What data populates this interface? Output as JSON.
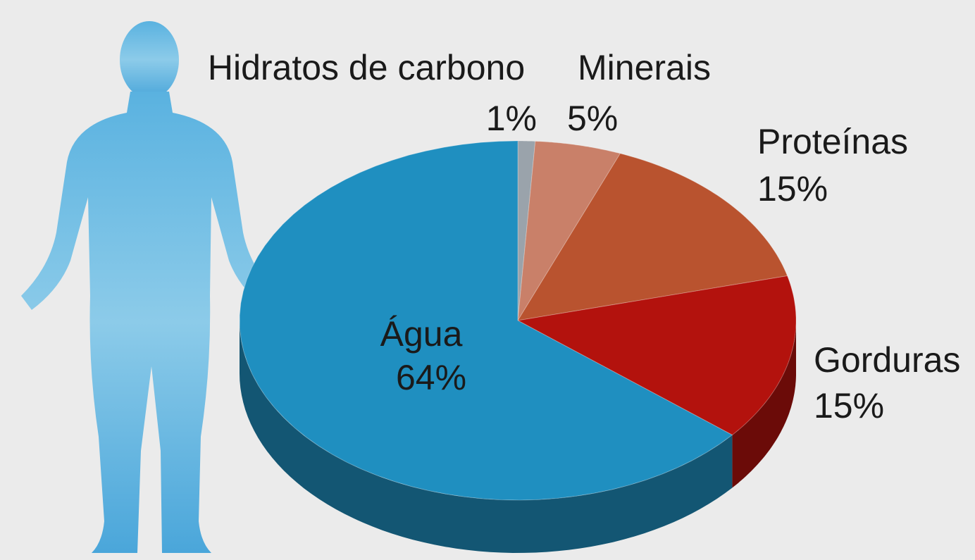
{
  "chart_data": {
    "type": "pie3d",
    "categories": [
      "Hidratos de carbono",
      "Minerais",
      "Proteínas",
      "Gorduras",
      "Água"
    ],
    "values": [
      1,
      5,
      15,
      15,
      64
    ],
    "value_labels": [
      "1%",
      "5%",
      "15%",
      "15%",
      "64%"
    ],
    "colors": [
      "#9aa3ab",
      "#c98069",
      "#b9532f",
      "#b3120d",
      "#1f8fc0"
    ]
  }
}
